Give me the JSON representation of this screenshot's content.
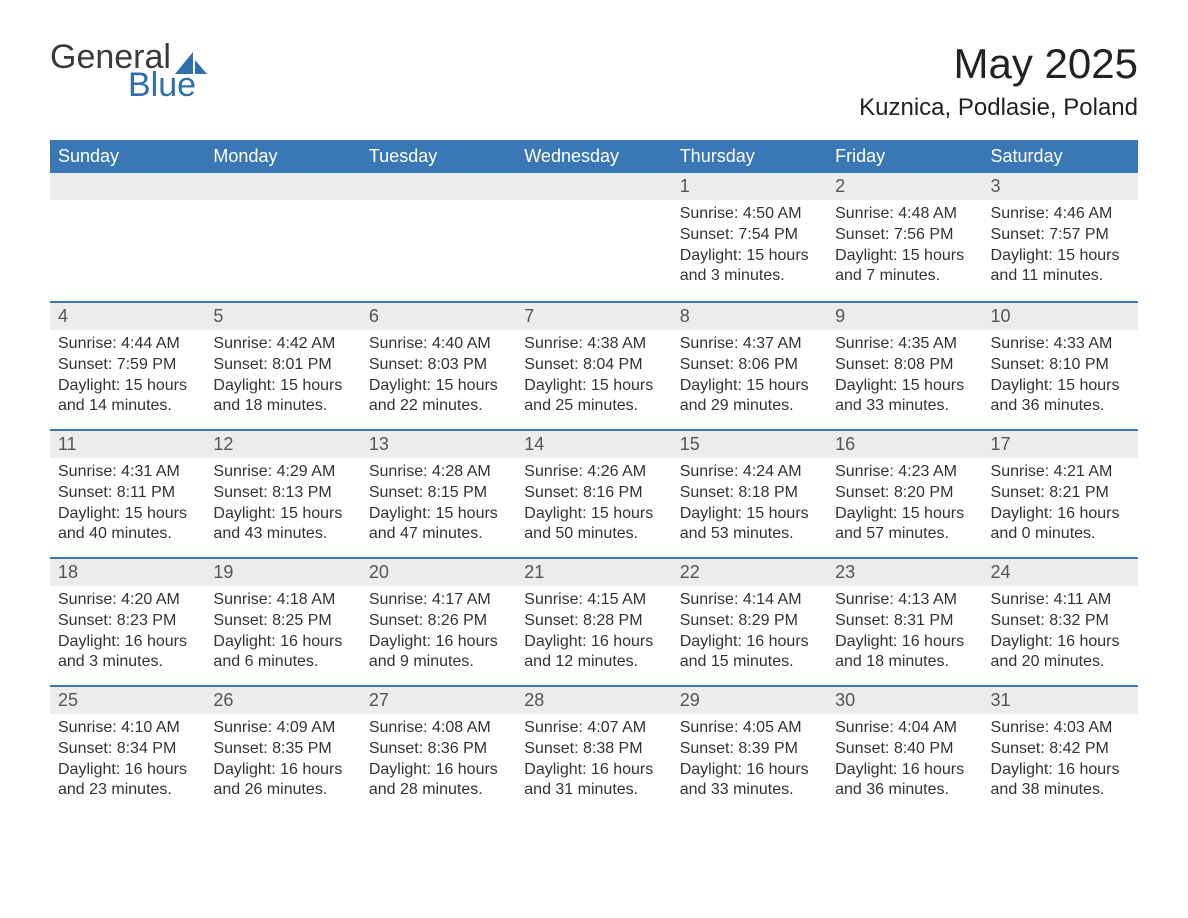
{
  "logo": {
    "general": "General",
    "blue": "Blue"
  },
  "title": "May 2025",
  "location": "Kuznica, Podlasie, Poland",
  "colors": {
    "header_bg": "#3a77b5",
    "header_text": "#ffffff",
    "daybar_bg": "#ececec",
    "daybar_border": "#3a77b5",
    "body_bg": "#ffffff",
    "text": "#333333",
    "logo_blue": "#2f6fad"
  },
  "typography": {
    "title_fontsize": 42,
    "location_fontsize": 24,
    "weekday_fontsize": 18,
    "daynum_fontsize": 18,
    "body_fontsize": 16
  },
  "weekdays": [
    "Sunday",
    "Monday",
    "Tuesday",
    "Wednesday",
    "Thursday",
    "Friday",
    "Saturday"
  ],
  "labels": {
    "sunrise": "Sunrise:",
    "sunset": "Sunset:",
    "daylight": "Daylight:"
  },
  "weeks": [
    [
      null,
      null,
      null,
      null,
      {
        "n": "1",
        "sunrise": "4:50 AM",
        "sunset": "7:54 PM",
        "daylight": "15 hours and 3 minutes."
      },
      {
        "n": "2",
        "sunrise": "4:48 AM",
        "sunset": "7:56 PM",
        "daylight": "15 hours and 7 minutes."
      },
      {
        "n": "3",
        "sunrise": "4:46 AM",
        "sunset": "7:57 PM",
        "daylight": "15 hours and 11 minutes."
      }
    ],
    [
      {
        "n": "4",
        "sunrise": "4:44 AM",
        "sunset": "7:59 PM",
        "daylight": "15 hours and 14 minutes."
      },
      {
        "n": "5",
        "sunrise": "4:42 AM",
        "sunset": "8:01 PM",
        "daylight": "15 hours and 18 minutes."
      },
      {
        "n": "6",
        "sunrise": "4:40 AM",
        "sunset": "8:03 PM",
        "daylight": "15 hours and 22 minutes."
      },
      {
        "n": "7",
        "sunrise": "4:38 AM",
        "sunset": "8:04 PM",
        "daylight": "15 hours and 25 minutes."
      },
      {
        "n": "8",
        "sunrise": "4:37 AM",
        "sunset": "8:06 PM",
        "daylight": "15 hours and 29 minutes."
      },
      {
        "n": "9",
        "sunrise": "4:35 AM",
        "sunset": "8:08 PM",
        "daylight": "15 hours and 33 minutes."
      },
      {
        "n": "10",
        "sunrise": "4:33 AM",
        "sunset": "8:10 PM",
        "daylight": "15 hours and 36 minutes."
      }
    ],
    [
      {
        "n": "11",
        "sunrise": "4:31 AM",
        "sunset": "8:11 PM",
        "daylight": "15 hours and 40 minutes."
      },
      {
        "n": "12",
        "sunrise": "4:29 AM",
        "sunset": "8:13 PM",
        "daylight": "15 hours and 43 minutes."
      },
      {
        "n": "13",
        "sunrise": "4:28 AM",
        "sunset": "8:15 PM",
        "daylight": "15 hours and 47 minutes."
      },
      {
        "n": "14",
        "sunrise": "4:26 AM",
        "sunset": "8:16 PM",
        "daylight": "15 hours and 50 minutes."
      },
      {
        "n": "15",
        "sunrise": "4:24 AM",
        "sunset": "8:18 PM",
        "daylight": "15 hours and 53 minutes."
      },
      {
        "n": "16",
        "sunrise": "4:23 AM",
        "sunset": "8:20 PM",
        "daylight": "15 hours and 57 minutes."
      },
      {
        "n": "17",
        "sunrise": "4:21 AM",
        "sunset": "8:21 PM",
        "daylight": "16 hours and 0 minutes."
      }
    ],
    [
      {
        "n": "18",
        "sunrise": "4:20 AM",
        "sunset": "8:23 PM",
        "daylight": "16 hours and 3 minutes."
      },
      {
        "n": "19",
        "sunrise": "4:18 AM",
        "sunset": "8:25 PM",
        "daylight": "16 hours and 6 minutes."
      },
      {
        "n": "20",
        "sunrise": "4:17 AM",
        "sunset": "8:26 PM",
        "daylight": "16 hours and 9 minutes."
      },
      {
        "n": "21",
        "sunrise": "4:15 AM",
        "sunset": "8:28 PM",
        "daylight": "16 hours and 12 minutes."
      },
      {
        "n": "22",
        "sunrise": "4:14 AM",
        "sunset": "8:29 PM",
        "daylight": "16 hours and 15 minutes."
      },
      {
        "n": "23",
        "sunrise": "4:13 AM",
        "sunset": "8:31 PM",
        "daylight": "16 hours and 18 minutes."
      },
      {
        "n": "24",
        "sunrise": "4:11 AM",
        "sunset": "8:32 PM",
        "daylight": "16 hours and 20 minutes."
      }
    ],
    [
      {
        "n": "25",
        "sunrise": "4:10 AM",
        "sunset": "8:34 PM",
        "daylight": "16 hours and 23 minutes."
      },
      {
        "n": "26",
        "sunrise": "4:09 AM",
        "sunset": "8:35 PM",
        "daylight": "16 hours and 26 minutes."
      },
      {
        "n": "27",
        "sunrise": "4:08 AM",
        "sunset": "8:36 PM",
        "daylight": "16 hours and 28 minutes."
      },
      {
        "n": "28",
        "sunrise": "4:07 AM",
        "sunset": "8:38 PM",
        "daylight": "16 hours and 31 minutes."
      },
      {
        "n": "29",
        "sunrise": "4:05 AM",
        "sunset": "8:39 PM",
        "daylight": "16 hours and 33 minutes."
      },
      {
        "n": "30",
        "sunrise": "4:04 AM",
        "sunset": "8:40 PM",
        "daylight": "16 hours and 36 minutes."
      },
      {
        "n": "31",
        "sunrise": "4:03 AM",
        "sunset": "8:42 PM",
        "daylight": "16 hours and 38 minutes."
      }
    ]
  ]
}
